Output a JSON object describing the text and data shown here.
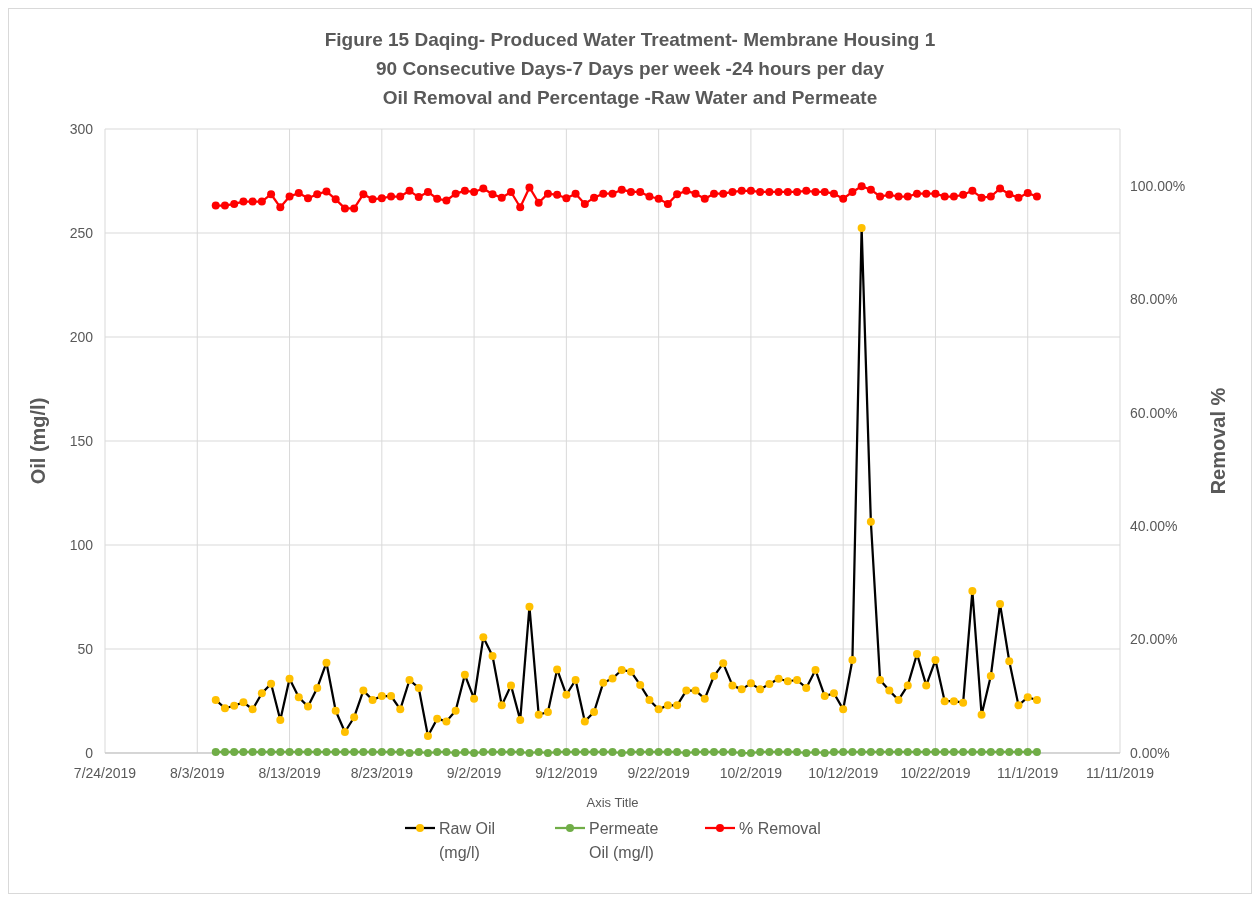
{
  "chart_data": {
    "type": "line",
    "title": "Figure 15 Daqing- Produced Water Treatment- Membrane Housing 1",
    "subtitle": "90 Consecutive Days-7 Days per week -24 hours per day\nOil Removal and Percentage -Raw Water and Permeate",
    "xlabel": "Axis Title",
    "ylabel": "Oil (mg/l)",
    "y2label": "Removal %",
    "x": [
      "2019-08-05",
      "2019-08-06",
      "2019-08-07",
      "2019-08-08",
      "2019-08-09",
      "2019-08-10",
      "2019-08-11",
      "2019-08-12",
      "2019-08-13",
      "2019-08-14",
      "2019-08-15",
      "2019-08-16",
      "2019-08-17",
      "2019-08-18",
      "2019-08-19",
      "2019-08-20",
      "2019-08-21",
      "2019-08-22",
      "2019-08-23",
      "2019-08-24",
      "2019-08-25",
      "2019-08-26",
      "2019-08-27",
      "2019-08-28",
      "2019-08-29",
      "2019-08-30",
      "2019-08-31",
      "2019-09-01",
      "2019-09-02",
      "2019-09-03",
      "2019-09-04",
      "2019-09-05",
      "2019-09-06",
      "2019-09-07",
      "2019-09-08",
      "2019-09-09",
      "2019-09-10",
      "2019-09-11",
      "2019-09-12",
      "2019-09-13",
      "2019-09-14",
      "2019-09-15",
      "2019-09-16",
      "2019-09-17",
      "2019-09-18",
      "2019-09-19",
      "2019-09-20",
      "2019-09-21",
      "2019-09-22",
      "2019-09-23",
      "2019-09-24",
      "2019-09-25",
      "2019-09-26",
      "2019-09-27",
      "2019-09-28",
      "2019-09-29",
      "2019-09-30",
      "2019-10-01",
      "2019-10-02",
      "2019-10-03",
      "2019-10-04",
      "2019-10-05",
      "2019-10-06",
      "2019-10-07",
      "2019-10-08",
      "2019-10-09",
      "2019-10-10",
      "2019-10-11",
      "2019-10-12",
      "2019-10-13",
      "2019-10-14",
      "2019-10-15",
      "2019-10-16",
      "2019-10-17",
      "2019-10-18",
      "2019-10-19",
      "2019-10-20",
      "2019-10-21",
      "2019-10-22",
      "2019-10-23",
      "2019-10-24",
      "2019-10-25",
      "2019-10-26",
      "2019-10-27",
      "2019-10-28",
      "2019-10-29",
      "2019-10-30",
      "2019-10-31",
      "2019-11-01",
      "2019-11-02"
    ],
    "series": [
      {
        "name": "Raw Oil (mg/l)",
        "color": "#000000",
        "colors": [
          "#ffc000",
          "#ffc000",
          "#ffc000",
          "#ffc000",
          "#ffc000",
          "#ffc000",
          "#ffc000",
          "#ffc000",
          "#ffc000",
          "#ffc000",
          "#ffc000",
          "#ffc000",
          "#ffc000",
          "#ffc000",
          "#ffc000",
          "#ffc000",
          "#ffc000",
          "#ffc000",
          "#ffc000",
          "#ffc000",
          "#ffc000",
          "#ffc000",
          "#ffc000",
          "#ffc000",
          "#ffc000",
          "#ffc000",
          "#ffc000",
          "#ffc000",
          "#ffc000",
          "#ffc000",
          "#ffc000",
          "#ffc000",
          "#ffc000",
          "#ffc000",
          "#ffc000",
          "#ffc000",
          "#ffc000",
          "#ffc000",
          "#ffc000",
          "#ffc000",
          "#ffc000",
          "#ffc000",
          "#ffc000",
          "#ffc000",
          "#ffc000",
          "#ffc000",
          "#ffc000",
          "#ffc000",
          "#ffc000",
          "#ffc000",
          "#ffc000",
          "#ffc000",
          "#ffc000",
          "#ffc000",
          "#ffc000",
          "#ffc000",
          "#ffc000",
          "#ffc000",
          "#ffc000",
          "#ffc000",
          "#ffc000",
          "#ffc000",
          "#ffc000",
          "#ffc000",
          "#ffc000",
          "#ffc000",
          "#ffc000",
          "#ffc000",
          "#ffc000",
          "#ffc000",
          "#ffc000",
          "#ffc000",
          "#ffc000",
          "#ffc000",
          "#ffc000",
          "#ffc000",
          "#ffc000",
          "#ffc000",
          "#ffc000",
          "#ffc000",
          "#ffc000",
          "#ffc000",
          "#ffc000",
          "#ffc000",
          "#ffc000",
          "#ffc000",
          "#ffc000",
          "#ffc000",
          "#ffc000",
          "#ffc000"
        ],
        "values": [
          25.5,
          21.5,
          22.7,
          24.4,
          21,
          28.7,
          33.3,
          15.9,
          35.7,
          26.8,
          22.3,
          31.3,
          43.4,
          20.3,
          10.1,
          17.2,
          30,
          25.5,
          27.4,
          27.4,
          21,
          35.1,
          31.3,
          8.2,
          16.5,
          15.2,
          20.3,
          37.6,
          26.1,
          55.6,
          46.6,
          22.9,
          32.5,
          15.9,
          70.3,
          18.4,
          19.7,
          40.2,
          28,
          35.1,
          15.2,
          19.7,
          33.8,
          35.8,
          39.9,
          39.1,
          32.7,
          25.5,
          21,
          22.9,
          22.9,
          30,
          30,
          26.1,
          37,
          43.1,
          32.5,
          30.6,
          33.5,
          30.6,
          33.2,
          35.7,
          34.5,
          35.1,
          31.3,
          39.9,
          27.4,
          28.7,
          21,
          44.7,
          252.4,
          111.2,
          35.1,
          30,
          25.5,
          32.5,
          47.6,
          32.5,
          44.7,
          24.9,
          24.9,
          24.2,
          77.9,
          18.4,
          37,
          71.6,
          44.1,
          22.9,
          26.8,
          25.5
        ]
      },
      {
        "name": "Permeate Oil (mg/l)",
        "color": "#70ad47",
        "values": [
          0.5,
          0.5,
          0.5,
          0.5,
          0.5,
          0.5,
          0.5,
          0.5,
          0.5,
          0.5,
          0.5,
          0.5,
          0.5,
          0.5,
          0.5,
          0.5,
          0.5,
          0.5,
          0.5,
          0.5,
          0.5,
          0,
          0.5,
          0,
          0.5,
          0.5,
          0,
          0.5,
          0,
          0.5,
          0.5,
          0.5,
          0.5,
          0.5,
          0,
          0.5,
          0,
          0.5,
          0.5,
          0.5,
          0.5,
          0.5,
          0.5,
          0.5,
          0,
          0.5,
          0.5,
          0.5,
          0.5,
          0.5,
          0.5,
          0,
          0.5,
          0.5,
          0.5,
          0.5,
          0.5,
          0,
          0,
          0.5,
          0.5,
          0.5,
          0.5,
          0.5,
          0,
          0.5,
          0,
          0.5,
          0.5,
          0.5,
          0.5,
          0.5,
          0.5,
          0.5,
          0.5,
          0.5,
          0.5,
          0.5,
          0.5,
          0.5,
          0.5,
          0.5,
          0.5,
          0.5,
          0.5,
          0.5,
          0.5,
          0.5,
          0.5,
          0.5
        ]
      },
      {
        "name": "% Removal",
        "color": "#ff0000",
        "axis": "y2",
        "values": [
          96.5,
          96.5,
          96.8,
          97.2,
          97.2,
          97.2,
          98.5,
          96.2,
          98.1,
          98.7,
          97.8,
          98.5,
          99,
          97.6,
          96,
          96,
          98.5,
          97.6,
          97.8,
          98.1,
          98.1,
          99.1,
          98,
          98.9,
          97.7,
          97.4,
          98.6,
          99.1,
          98.9,
          99.5,
          98.5,
          97.9,
          98.9,
          96.2,
          99.7,
          97,
          98.6,
          98.4,
          97.8,
          98.6,
          96.8,
          97.9,
          98.6,
          98.6,
          99.3,
          98.9,
          98.9,
          98.1,
          97.7,
          96.8,
          98.5,
          99.1,
          98.6,
          97.7,
          98.6,
          98.6,
          98.9,
          99.1,
          99.1,
          98.9,
          98.9,
          98.9,
          98.9,
          98.9,
          99.1,
          98.9,
          98.9,
          98.6,
          97.7,
          98.9,
          99.9,
          99.3,
          98.1,
          98.4,
          98.1,
          98.1,
          98.6,
          98.6,
          98.6,
          98.1,
          98.1,
          98.4,
          99.1,
          97.9,
          98.1,
          99.5,
          98.5,
          97.9,
          98.7,
          98.1
        ]
      }
    ],
    "xlim": [
      "2019-07-24",
      "2019-11-11"
    ],
    "xticks": [
      {
        "value": "2019-07-24",
        "label": "7/24/2019"
      },
      {
        "value": "2019-08-03",
        "label": "8/3/2019"
      },
      {
        "value": "2019-08-13",
        "label": "8/13/2019"
      },
      {
        "value": "2019-08-23",
        "label": "8/23/2019"
      },
      {
        "value": "2019-09-02",
        "label": "9/2/2019"
      },
      {
        "value": "2019-09-12",
        "label": "9/12/2019"
      },
      {
        "value": "2019-09-22",
        "label": "9/22/2019"
      },
      {
        "value": "2019-10-02",
        "label": "10/2/2019"
      },
      {
        "value": "2019-10-12",
        "label": "10/12/2019"
      },
      {
        "value": "2019-10-22",
        "label": "10/22/2019"
      },
      {
        "value": "2019-11-01",
        "label": "11/1/2019"
      },
      {
        "value": "2019-11-11",
        "label": "11/11/2019"
      }
    ],
    "ylim": [
      0,
      300
    ],
    "yticks": [
      0,
      50,
      100,
      150,
      200,
      250,
      300
    ],
    "y2lim": [
      0,
      110
    ],
    "y2ticks": [
      {
        "value": 0,
        "label": "0.00%"
      },
      {
        "value": 20,
        "label": "20.00%"
      },
      {
        "value": 40,
        "label": "40.00%"
      },
      {
        "value": 60,
        "label": "60.00%"
      },
      {
        "value": 80,
        "label": "80.00%"
      },
      {
        "value": 100,
        "label": "100.00%"
      }
    ],
    "grid": true,
    "legend": "bottom",
    "marker": "circle",
    "line_style": "solid"
  }
}
